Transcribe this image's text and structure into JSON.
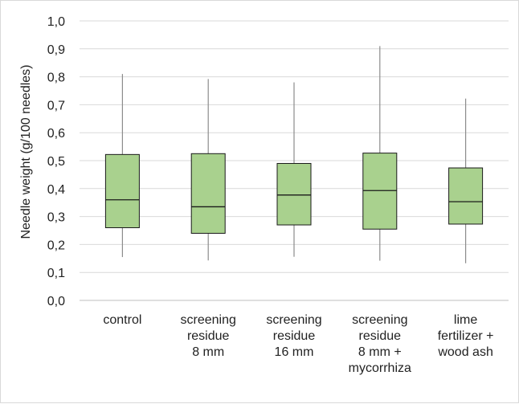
{
  "chart_data": {
    "type": "boxplot",
    "title": "",
    "ylabel": "Needle weight (g/100 needles)",
    "xlabel": "",
    "ylim": [
      0,
      1.0
    ],
    "yticks": [
      "0,0",
      "0,1",
      "0,2",
      "0,3",
      "0,4",
      "0,5",
      "0,6",
      "0,7",
      "0,8",
      "0,9",
      "1,0"
    ],
    "grid": true,
    "box_color": "#a9d18e",
    "box_edge_color": "#1a1a1a",
    "whisker_color": "#8c8c8c",
    "categories": [
      {
        "lines": [
          "control"
        ]
      },
      {
        "lines": [
          "screening",
          "residue",
          "8 mm"
        ]
      },
      {
        "lines": [
          "screening",
          "residue",
          "16 mm"
        ]
      },
      {
        "lines": [
          "screening",
          "residue",
          "8 mm +",
          "mycorrhiza"
        ]
      },
      {
        "lines": [
          "lime",
          "fertilizer +",
          "wood ash"
        ]
      }
    ],
    "boxes": [
      {
        "min": 0.155,
        "q1": 0.26,
        "median": 0.36,
        "q3": 0.522,
        "max": 0.81
      },
      {
        "min": 0.143,
        "q1": 0.24,
        "median": 0.335,
        "q3": 0.525,
        "max": 0.792
      },
      {
        "min": 0.156,
        "q1": 0.27,
        "median": 0.377,
        "q3": 0.49,
        "max": 0.78
      },
      {
        "min": 0.142,
        "q1": 0.255,
        "median": 0.393,
        "q3": 0.527,
        "max": 0.91
      },
      {
        "min": 0.133,
        "q1": 0.273,
        "median": 0.353,
        "q3": 0.474,
        "max": 0.722
      }
    ]
  }
}
